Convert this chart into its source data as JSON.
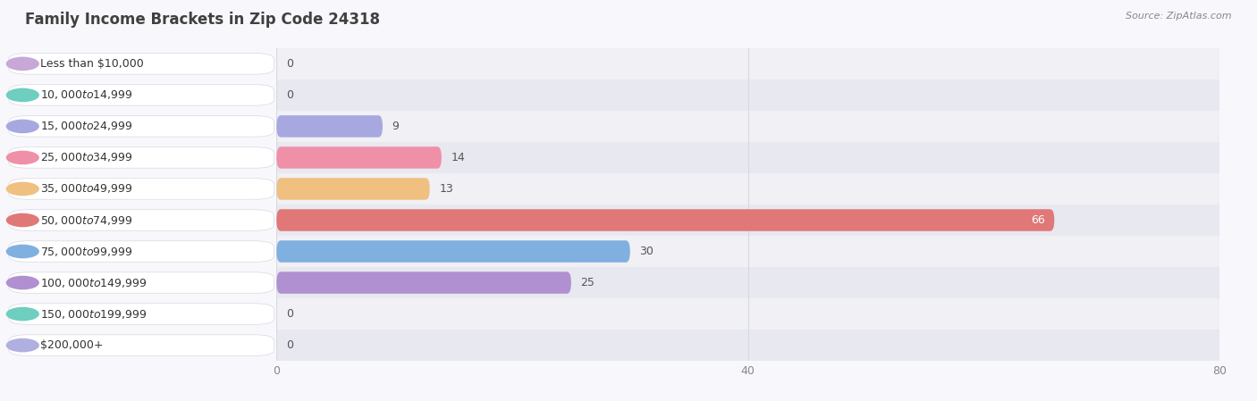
{
  "title": "Family Income Brackets in Zip Code 24318",
  "source": "Source: ZipAtlas.com",
  "categories": [
    "Less than $10,000",
    "$10,000 to $14,999",
    "$15,000 to $24,999",
    "$25,000 to $34,999",
    "$35,000 to $49,999",
    "$50,000 to $74,999",
    "$75,000 to $99,999",
    "$100,000 to $149,999",
    "$150,000 to $199,999",
    "$200,000+"
  ],
  "values": [
    0,
    0,
    9,
    14,
    13,
    66,
    30,
    25,
    0,
    0
  ],
  "bar_colors": [
    "#c8a8d8",
    "#6ecec0",
    "#a8a8e0",
    "#f090a8",
    "#f0c080",
    "#e07878",
    "#80b0e0",
    "#b090d0",
    "#6ecec0",
    "#b0b0e0"
  ],
  "row_bg_colors": [
    "#f5f5f8",
    "#ebebf0",
    "#f5f5f8",
    "#ebebf0",
    "#f5f5f8",
    "#ebebf0",
    "#f5f5f8",
    "#ebebf0",
    "#f5f5f8",
    "#ebebf0"
  ],
  "xlim": [
    0,
    80
  ],
  "xticks": [
    0,
    40,
    80
  ],
  "background_color": "#f5f5f8",
  "title_fontsize": 12,
  "source_fontsize": 8,
  "label_fontsize": 9,
  "value_fontsize": 9
}
